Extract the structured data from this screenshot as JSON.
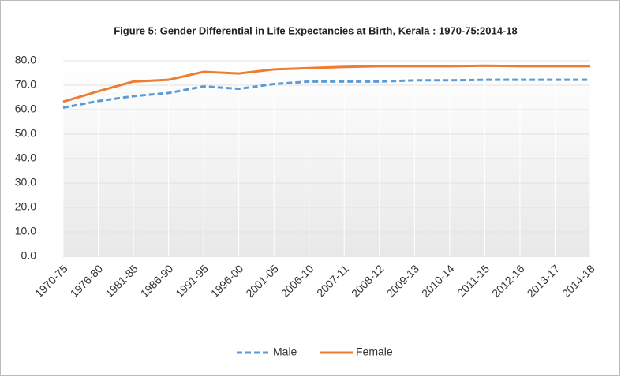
{
  "chart_data": {
    "type": "line",
    "title": "Figure 5: Gender Differential  in Life Expectancies at Birth, Kerala : 1970-75:2014-18",
    "categories": [
      "1970-75",
      "1976-80",
      "1981-85",
      "1986-90",
      "1991-95",
      "1996-00",
      "2001-05",
      "2006-10",
      "2007-11",
      "2008-12",
      "2009-13",
      "2010-14",
      "2011-15",
      "2012-16",
      "2013-17",
      "2014-18"
    ],
    "series": [
      {
        "name": "Male",
        "color": "#5b9bd5",
        "dash": true,
        "values": [
          60.8,
          63.5,
          65.5,
          66.8,
          69.5,
          68.5,
          70.5,
          71.5,
          71.5,
          71.5,
          72.0,
          72.0,
          72.2,
          72.2,
          72.2,
          72.2
        ]
      },
      {
        "name": "Female",
        "color": "#ed7d31",
        "dash": false,
        "values": [
          63.2,
          67.5,
          71.5,
          72.2,
          75.5,
          74.8,
          76.5,
          77.0,
          77.5,
          77.8,
          77.8,
          77.8,
          78.0,
          77.8,
          77.8,
          77.8
        ]
      }
    ],
    "ylim": [
      0,
      80
    ],
    "yticks": [
      {
        "value": 0,
        "label": "0.0"
      },
      {
        "value": 10,
        "label": "10.0"
      },
      {
        "value": 20,
        "label": "20.0"
      },
      {
        "value": 30,
        "label": "30.0"
      },
      {
        "value": 40,
        "label": "40.0"
      },
      {
        "value": 50,
        "label": "50.0"
      },
      {
        "value": 60,
        "label": "60.0"
      },
      {
        "value": 70,
        "label": "70.0"
      },
      {
        "value": 80,
        "label": "80.0"
      }
    ],
    "grid": true,
    "legend": "bottom"
  }
}
